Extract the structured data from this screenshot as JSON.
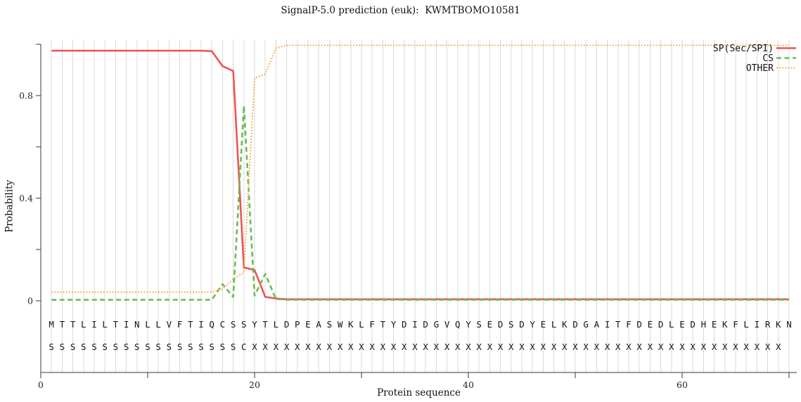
{
  "figure": {
    "title": "SignalP-5.0 prediction (euk):  KWMTBOMO10581"
  },
  "chart_data": {
    "type": "line",
    "title": "SignalP-5.0 prediction (euk):  KWMTBOMO10581",
    "xlabel": "Protein sequence",
    "ylabel": "Probability",
    "xlim": [
      0,
      70.7
    ],
    "ylim": [
      0,
      1.0
    ],
    "grid": "vertical-gridline-per-residue",
    "legend_position": "top-right",
    "x_ticks": [
      {
        "v": 0,
        "label": "0"
      },
      {
        "v": 10
      },
      {
        "v": 20,
        "label": "20"
      },
      {
        "v": 30
      },
      {
        "v": 40,
        "label": "40"
      },
      {
        "v": 50
      },
      {
        "v": 60,
        "label": "60"
      },
      {
        "v": 70
      }
    ],
    "y_ticks": [
      {
        "v": 0,
        "label": "0"
      },
      {
        "v": 0.2
      },
      {
        "v": 0.4,
        "label": "0.4"
      },
      {
        "v": 0.6
      },
      {
        "v": 0.8,
        "label": "0.8"
      },
      {
        "v": 1.0
      }
    ],
    "sequence": "MTTLILTINLLVFTIQCSSYTLDPEASWKLFTYDIDGVQYSEDSDYELKDGAITFDEDLEDHEKFLIRKN",
    "position_labels": "SSSSSSSSSSSSSSSSSSCXXXXXXXXXXXXXXXXXXXXXXXXXXXXXXXXXXXXXXXXXXXXXXXXXX",
    "series": [
      {
        "name": "SP(Sec/SPI)",
        "color": "#ee5456",
        "style": "solid",
        "values": [
          0.975,
          0.975,
          0.975,
          0.975,
          0.975,
          0.975,
          0.975,
          0.975,
          0.975,
          0.975,
          0.975,
          0.975,
          0.975,
          0.975,
          0.975,
          0.973,
          0.915,
          0.896,
          0.13,
          0.12,
          0.015,
          0.009,
          0.006,
          0.006,
          0.006,
          0.006,
          0.006,
          0.006,
          0.006,
          0.006,
          0.006,
          0.006,
          0.006,
          0.006,
          0.006,
          0.006,
          0.006,
          0.006,
          0.006,
          0.006,
          0.006,
          0.006,
          0.006,
          0.006,
          0.006,
          0.006,
          0.006,
          0.006,
          0.006,
          0.006,
          0.006,
          0.006,
          0.006,
          0.006,
          0.006,
          0.006,
          0.006,
          0.006,
          0.006,
          0.006,
          0.006,
          0.006,
          0.006,
          0.006,
          0.006,
          0.006,
          0.006,
          0.006,
          0.006,
          0.006
        ]
      },
      {
        "name": "CS",
        "color": "#6abd57",
        "style": "dashed",
        "values": [
          0.004,
          0.004,
          0.004,
          0.004,
          0.004,
          0.004,
          0.004,
          0.004,
          0.004,
          0.004,
          0.004,
          0.004,
          0.004,
          0.004,
          0.004,
          0.004,
          0.065,
          0.015,
          0.76,
          0.02,
          0.105,
          0.007,
          0.004,
          0.004,
          0.004,
          0.004,
          0.004,
          0.004,
          0.004,
          0.004,
          0.004,
          0.004,
          0.004,
          0.004,
          0.004,
          0.004,
          0.004,
          0.004,
          0.004,
          0.004,
          0.004,
          0.004,
          0.004,
          0.004,
          0.004,
          0.004,
          0.004,
          0.004,
          0.004,
          0.004,
          0.004,
          0.004,
          0.004,
          0.004,
          0.004,
          0.004,
          0.004,
          0.004,
          0.004,
          0.004,
          0.004,
          0.004,
          0.004,
          0.004,
          0.004,
          0.004,
          0.004,
          0.004,
          0.004,
          0.004
        ]
      },
      {
        "name": "OTHER",
        "color": "#f7a94f",
        "style": "dotted",
        "values": [
          0.034,
          0.034,
          0.034,
          0.034,
          0.034,
          0.034,
          0.034,
          0.034,
          0.034,
          0.034,
          0.034,
          0.034,
          0.034,
          0.034,
          0.034,
          0.034,
          0.046,
          0.085,
          0.11,
          0.868,
          0.884,
          0.985,
          0.996,
          0.996,
          0.996,
          0.996,
          0.996,
          0.996,
          0.996,
          0.996,
          0.996,
          0.996,
          0.996,
          0.996,
          0.996,
          0.996,
          0.996,
          0.996,
          0.996,
          0.996,
          0.996,
          0.996,
          0.996,
          0.996,
          0.996,
          0.996,
          0.996,
          0.996,
          0.996,
          0.996,
          0.996,
          0.996,
          0.996,
          0.996,
          0.996,
          0.996,
          0.996,
          0.996,
          0.996,
          0.996,
          0.996,
          0.996,
          0.996,
          0.996,
          0.996,
          0.996,
          0.996,
          0.996,
          0.996,
          0.996
        ]
      }
    ]
  }
}
